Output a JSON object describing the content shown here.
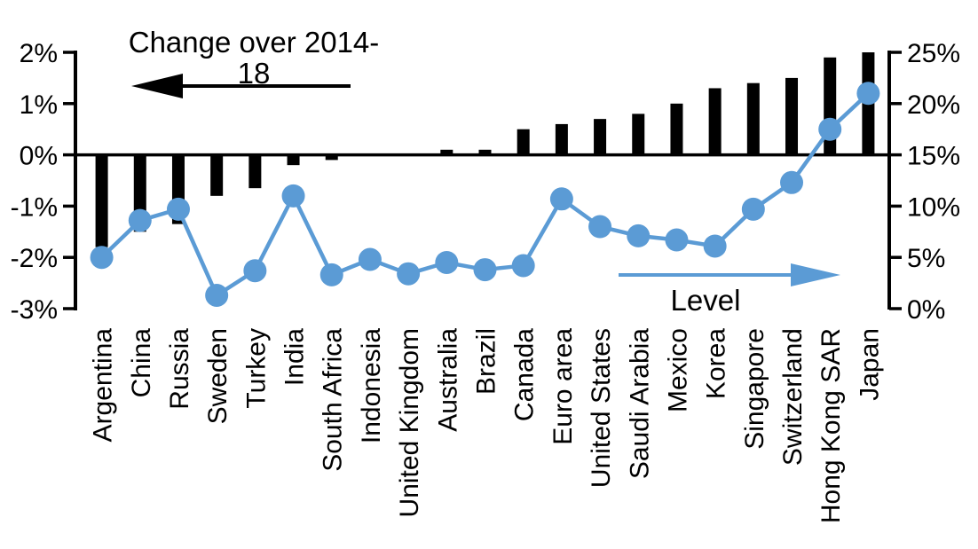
{
  "chart_data": {
    "type": "combo-bar-line-dual-axis",
    "categories": [
      "Argentina",
      "China",
      "Russia",
      "Sweden",
      "Turkey",
      "India",
      "South Africa",
      "Indonesia",
      "United Kingdom",
      "Australia",
      "Brazil",
      "Canada",
      "Euro area",
      "United States",
      "Saudi Arabia",
      "Mexico",
      "Korea",
      "Singapore",
      "Switzerland",
      "Hong Kong SAR",
      "Japan"
    ],
    "series": [
      {
        "name": "Change over 2014-18",
        "type": "bar",
        "axis": "left",
        "color": "#000000",
        "values": [
          -1.8,
          -1.5,
          -1.35,
          -0.8,
          -0.65,
          -0.2,
          -0.1,
          0,
          0,
          0.1,
          0.1,
          0.5,
          0.6,
          0.7,
          0.8,
          1.0,
          1.3,
          1.4,
          1.5,
          1.9,
          2.0
        ]
      },
      {
        "name": "Level",
        "type": "line",
        "axis": "right",
        "color": "#5B9BD5",
        "values": [
          5.0,
          8.6,
          9.7,
          1.3,
          3.7,
          11.0,
          3.3,
          4.8,
          3.4,
          4.5,
          3.8,
          4.2,
          10.7,
          8.0,
          7.1,
          6.7,
          6.1,
          9.7,
          12.3,
          17.5,
          21.0
        ]
      }
    ],
    "left_axis": {
      "min": -3,
      "max": 2,
      "tick_values": [
        2,
        1,
        0,
        -1,
        -2,
        -3
      ],
      "tick_labels": [
        "2%",
        "1%",
        "0%",
        "-1%",
        "-2%",
        "-3%"
      ]
    },
    "right_axis": {
      "min": 0,
      "max": 25,
      "tick_values": [
        25,
        20,
        15,
        10,
        5,
        0
      ],
      "tick_labels": [
        "25%",
        "20%",
        "15%",
        "10%",
        "5%",
        "0%"
      ]
    },
    "annotations": {
      "change": {
        "text": "Change over 2014-18",
        "arrow_direction": "left",
        "arrow_color": "#000000"
      },
      "level": {
        "text": "Level",
        "arrow_direction": "right",
        "arrow_color": "#5B9BD5"
      }
    },
    "grid": "off",
    "zero_baseline_left_equals_right": "0% left aligns with 15% right"
  }
}
